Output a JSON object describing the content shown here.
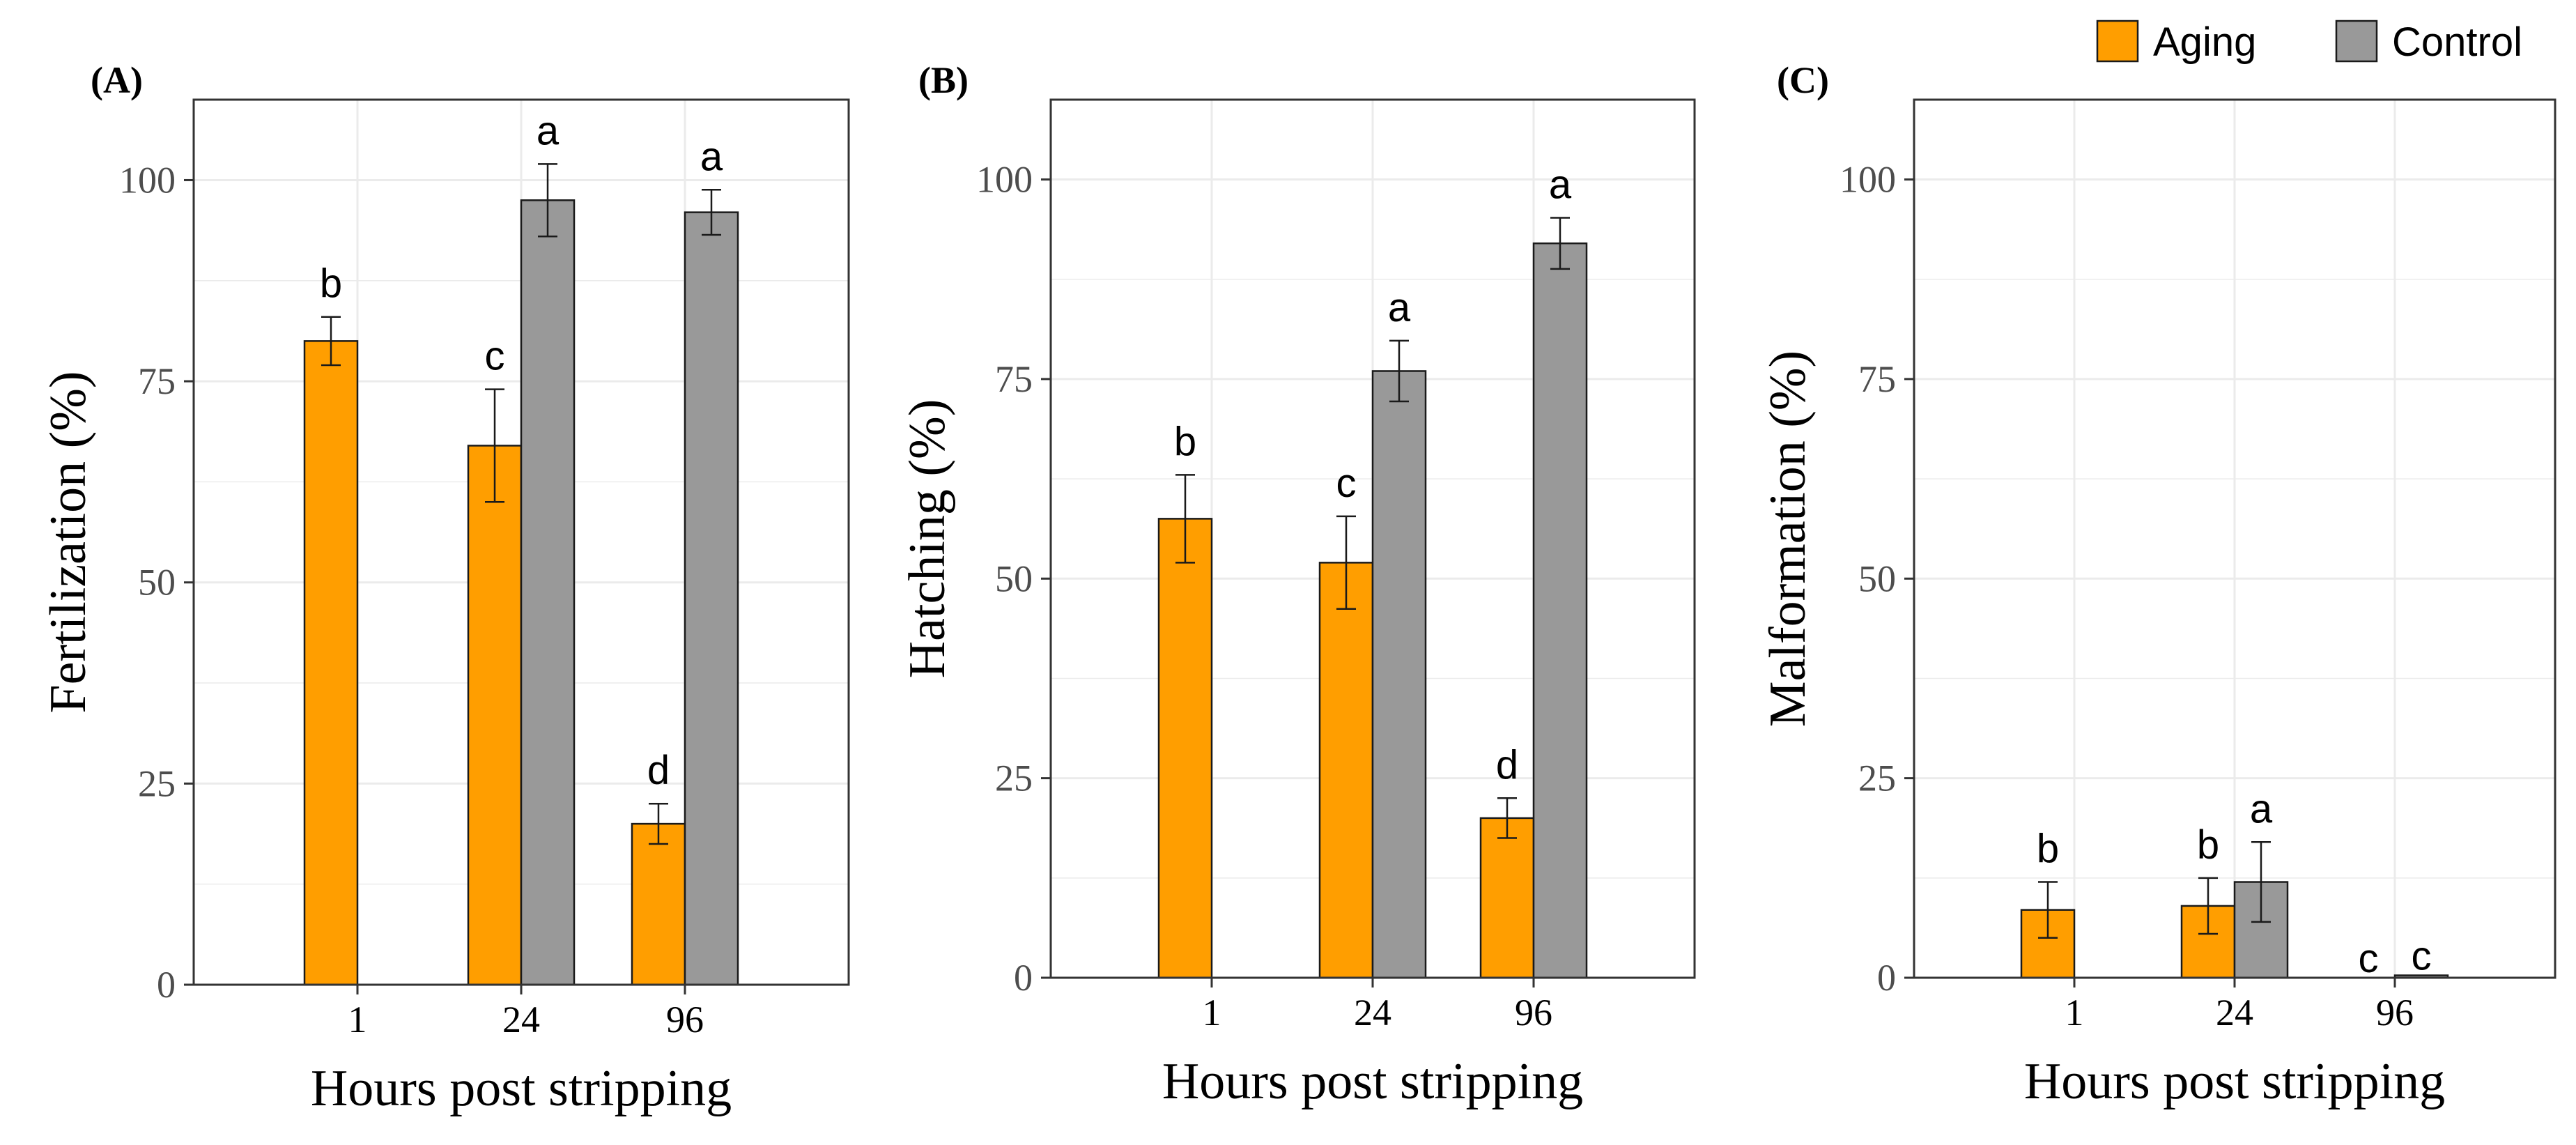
{
  "legend": {
    "entries": [
      {
        "label": "Aging",
        "color": "#FF9E00"
      },
      {
        "label": "Control",
        "color": "#999999"
      }
    ],
    "position": "top-right"
  },
  "colors": {
    "aging": "#FF9E00",
    "control": "#999999",
    "grid": "#EBEBEB",
    "border": "#333333"
  },
  "chart_data": [
    {
      "type": "bar",
      "panel_label": "(A)",
      "title": "",
      "xlabel": "Hours post stripping",
      "ylabel": "Fertilization (%)",
      "categories": [
        "1",
        "24",
        "96"
      ],
      "ylim": [
        0,
        110
      ],
      "yticks": [
        0,
        25,
        50,
        75,
        100
      ],
      "grid": true,
      "series": [
        {
          "name": "Aging",
          "values": [
            80,
            67,
            20
          ],
          "errors": [
            3,
            7,
            2.5
          ],
          "letters": [
            "b",
            "c",
            "d"
          ]
        },
        {
          "name": "Control",
          "values": [
            null,
            97.5,
            96
          ],
          "errors": [
            null,
            4.5,
            2.8
          ],
          "letters": [
            null,
            "a",
            "a"
          ]
        }
      ]
    },
    {
      "type": "bar",
      "panel_label": "(B)",
      "title": "",
      "xlabel": "Hours post stripping",
      "ylabel": "Hatching (%)",
      "categories": [
        "1",
        "24",
        "96"
      ],
      "ylim": [
        0,
        110
      ],
      "yticks": [
        0,
        25,
        50,
        75,
        100
      ],
      "grid": true,
      "series": [
        {
          "name": "Aging",
          "values": [
            57.5,
            52,
            20
          ],
          "errors": [
            5.5,
            5.8,
            2.5
          ],
          "letters": [
            "b",
            "c",
            "d"
          ]
        },
        {
          "name": "Control",
          "values": [
            null,
            76,
            92
          ],
          "errors": [
            null,
            3.8,
            3.2
          ],
          "letters": [
            null,
            "a",
            "a"
          ]
        }
      ]
    },
    {
      "type": "bar",
      "panel_label": "(C)",
      "title": "",
      "xlabel": "Hours post stripping",
      "ylabel": "Malformation (%)",
      "categories": [
        "1",
        "24",
        "96"
      ],
      "ylim": [
        0,
        110
      ],
      "yticks": [
        0,
        25,
        50,
        75,
        100
      ],
      "grid": true,
      "series": [
        {
          "name": "Aging",
          "values": [
            8.5,
            9,
            0
          ],
          "errors": [
            3.5,
            3.5,
            0
          ],
          "letters": [
            "b",
            "b",
            "c"
          ]
        },
        {
          "name": "Control",
          "values": [
            null,
            12,
            0.3
          ],
          "errors": [
            null,
            5,
            0
          ],
          "letters": [
            null,
            "a",
            "c"
          ]
        }
      ]
    }
  ]
}
